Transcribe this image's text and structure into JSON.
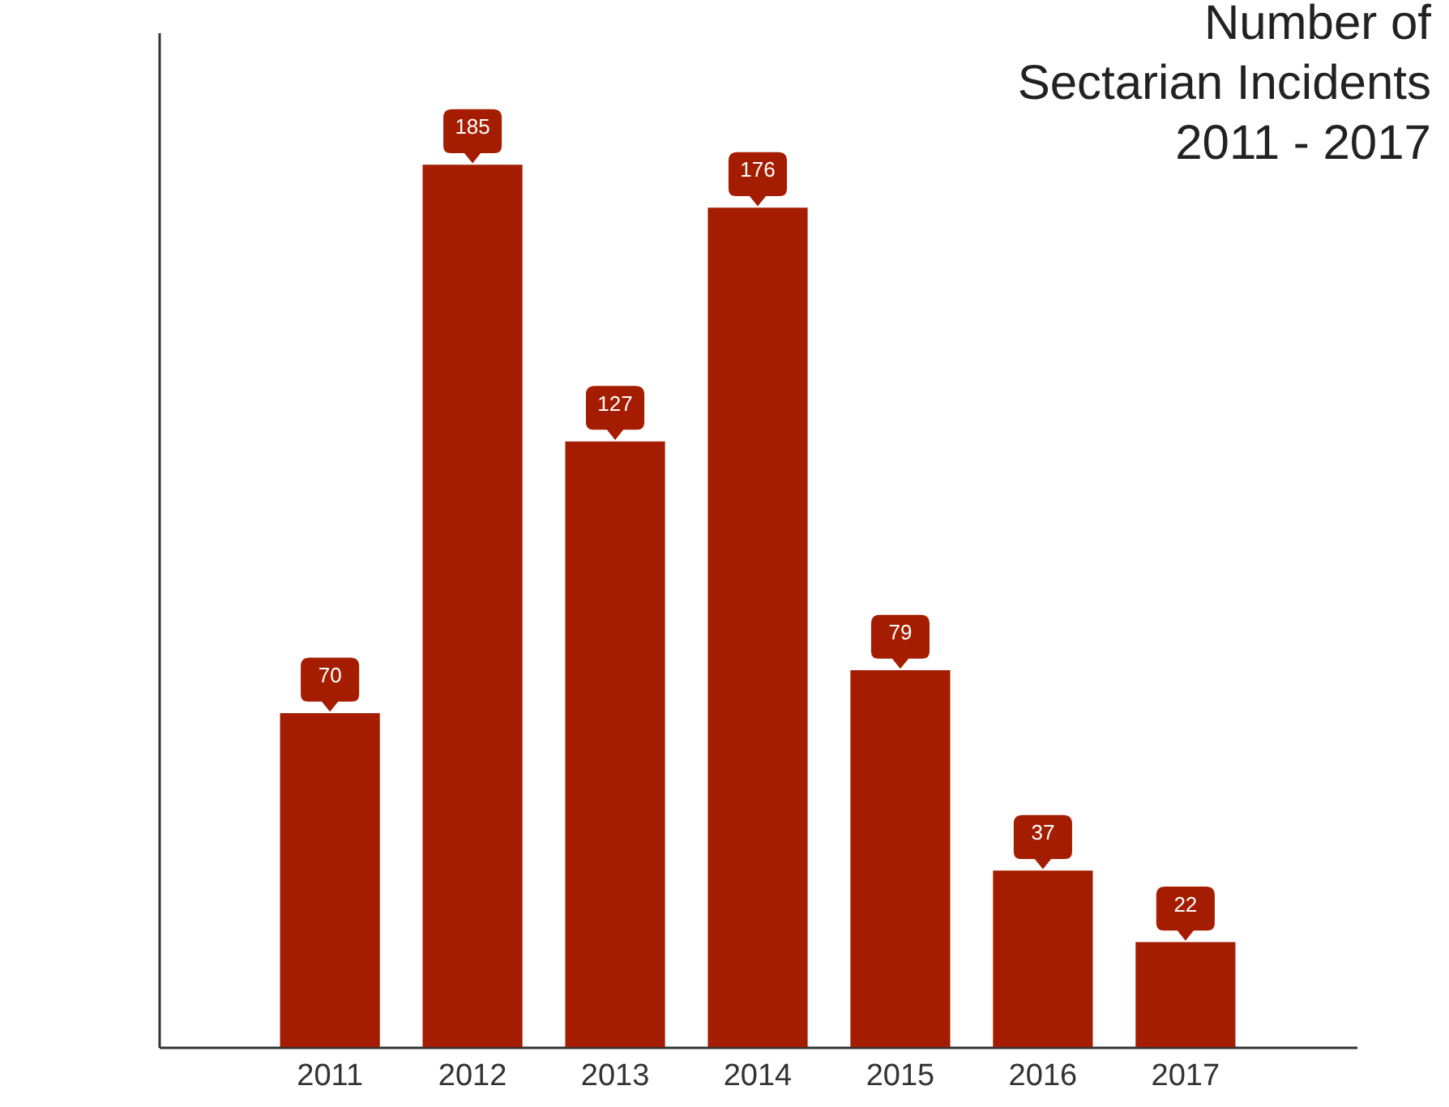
{
  "chart_data": {
    "type": "bar",
    "title": "Number of\nSectarian Incidents\n2011 - 2017",
    "categories": [
      "2011",
      "2012",
      "2013",
      "2014",
      "2015",
      "2016",
      "2017"
    ],
    "values": [
      70,
      185,
      127,
      176,
      79,
      37,
      22
    ],
    "color": "#a51d00",
    "data_labels": true,
    "tick_labels": "x"
  }
}
